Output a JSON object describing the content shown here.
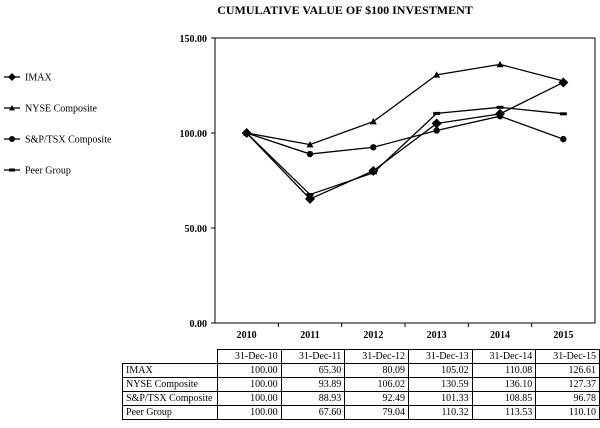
{
  "chart_data": {
    "type": "line",
    "title": "CUMULATIVE VALUE OF $100 INVESTMENT",
    "categories": [
      "2010",
      "2011",
      "2012",
      "2013",
      "2014",
      "2015"
    ],
    "table_dates": [
      "31-Dec-10",
      "31-Dec-11",
      "31-Dec-12",
      "31-Dec-13",
      "31-Dec-14",
      "31-Dec-15"
    ],
    "y_ticks": [
      "0.00",
      "50.00",
      "100.00",
      "150.00"
    ],
    "ylim": [
      0,
      150
    ],
    "xlabel": "",
    "ylabel": "",
    "grid": false,
    "legend_position": "left",
    "series": [
      {
        "name": "IMAX",
        "marker": "diamond",
        "values": [
          100.0,
          65.3,
          80.09,
          105.02,
          110.08,
          126.61
        ],
        "labels": [
          "100.00",
          "65.30",
          "80.09",
          "105.02",
          "110.08",
          "126.61"
        ]
      },
      {
        "name": "NYSE Composite",
        "marker": "triangle",
        "values": [
          100.0,
          93.89,
          106.02,
          130.59,
          136.1,
          127.37
        ],
        "labels": [
          "100.00",
          "93.89",
          "106.02",
          "130.59",
          "136.10",
          "127.37"
        ]
      },
      {
        "name": "S&P/TSX Composite",
        "marker": "circle",
        "values": [
          100.0,
          88.93,
          92.49,
          101.33,
          108.85,
          96.78
        ],
        "labels": [
          "100.00",
          "88.93",
          "92.49",
          "101.33",
          "108.85",
          "96.78"
        ]
      },
      {
        "name": "Peer Group",
        "marker": "dash",
        "values": [
          100.0,
          67.6,
          79.04,
          110.32,
          113.53,
          110.1
        ],
        "labels": [
          "100.00",
          "67.60",
          "79.04",
          "110.32",
          "113.53",
          "110.10"
        ]
      }
    ]
  }
}
